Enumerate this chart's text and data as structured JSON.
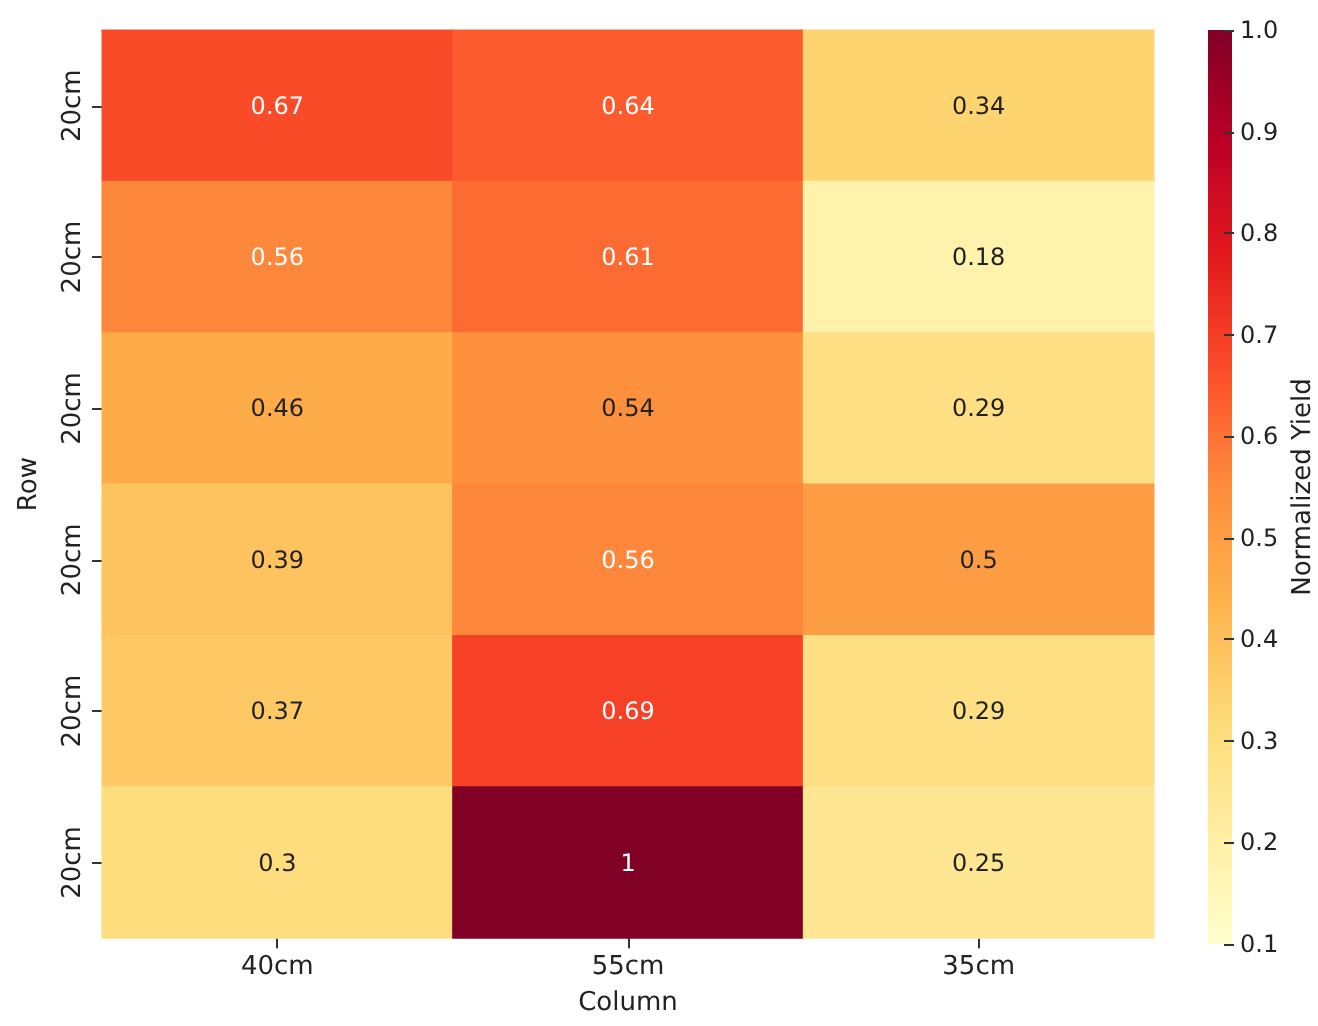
{
  "chart_data": {
    "type": "heatmap",
    "xlabel": "Column",
    "ylabel": "Row",
    "clabel": "Normalized Yield",
    "categories": [
      "40cm",
      "55cm",
      "35cm"
    ],
    "y_categories": [
      "20cm",
      "20cm",
      "20cm",
      "20cm",
      "20cm",
      "20cm"
    ],
    "cells": [
      [
        0.67,
        0.64,
        0.34
      ],
      [
        0.56,
        0.61,
        0.18
      ],
      [
        0.46,
        0.54,
        0.29
      ],
      [
        0.39,
        0.56,
        0.5
      ],
      [
        0.37,
        0.69,
        0.29
      ],
      [
        0.3,
        1,
        0.25
      ]
    ],
    "clim": [
      0.1,
      1.0
    ],
    "cticks": [
      0.1,
      0.2,
      0.3,
      0.4,
      0.5,
      0.6,
      0.7,
      0.8,
      0.9,
      {
        "value": 1,
        "label": "1.0"
      }
    ],
    "data_labels": true
  }
}
